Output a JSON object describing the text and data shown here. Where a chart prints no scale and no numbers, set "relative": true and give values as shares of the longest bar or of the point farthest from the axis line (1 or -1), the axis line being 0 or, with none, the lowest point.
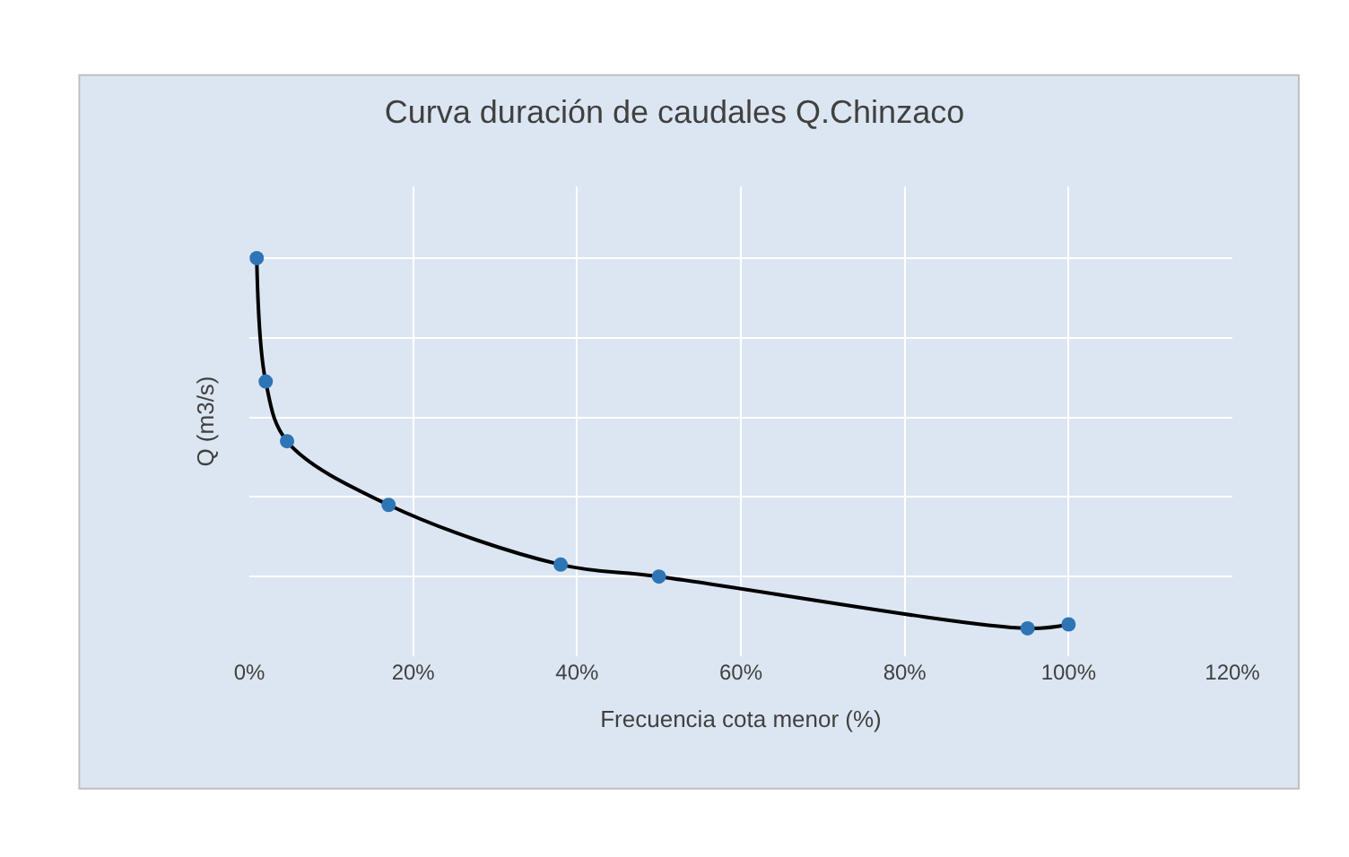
{
  "chart_data": {
    "type": "line",
    "title": "Curva duración de caudales Q.Chinzaco",
    "xlabel": "Frecuencia cota menor (%)",
    "ylabel": "Q (m3/s)",
    "relative": true,
    "x": [
      0.9,
      2,
      4.6,
      17,
      38,
      50,
      95,
      100
    ],
    "series": [
      {
        "marker": "none",
        "color": "#000000",
        "values": [
          1,
          0.69,
          0.54,
          0.38,
          0.23,
          0.2,
          0.07,
          0.08
        ]
      },
      {
        "type": "scatter",
        "marker": "circle",
        "color": "#2e75b6",
        "values": [
          1,
          0.69,
          0.54,
          0.38,
          0.23,
          0.2,
          0.07,
          0.08
        ]
      }
    ],
    "grid": true,
    "xlim": [
      0,
      120
    ],
    "xticks": [
      {
        "value": 0,
        "label": "0%"
      },
      {
        "value": 20,
        "label": "20%"
      },
      {
        "value": 40,
        "label": "40%"
      },
      {
        "value": 60,
        "label": "60%"
      },
      {
        "value": 80,
        "label": "80%"
      },
      {
        "value": 100,
        "label": "100%"
      },
      {
        "value": 120,
        "label": "120%"
      }
    ]
  }
}
